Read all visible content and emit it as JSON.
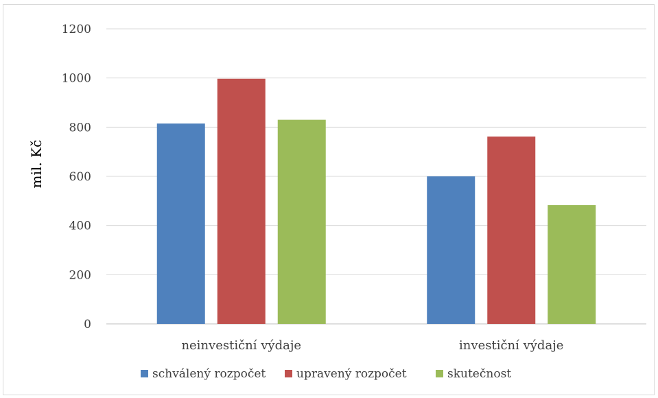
{
  "chart_data": {
    "type": "bar",
    "title": "",
    "xlabel": "",
    "ylabel": "mil. Kč",
    "ylim": [
      0,
      1200
    ],
    "yticks": [
      0,
      200,
      400,
      600,
      800,
      1000,
      1200
    ],
    "grid": true,
    "legend_position": "bottom",
    "categories": [
      "neinvestiční výdaje",
      "investiční výdaje"
    ],
    "series": [
      {
        "name": "schválený rozpočet",
        "color": "#4f81bd",
        "values": [
          815,
          600
        ]
      },
      {
        "name": "upravený rozpočet",
        "color": "#c0504d",
        "values": [
          997,
          762
        ]
      },
      {
        "name": "skutečnost",
        "color": "#9bbb59",
        "values": [
          830,
          483
        ]
      }
    ]
  }
}
